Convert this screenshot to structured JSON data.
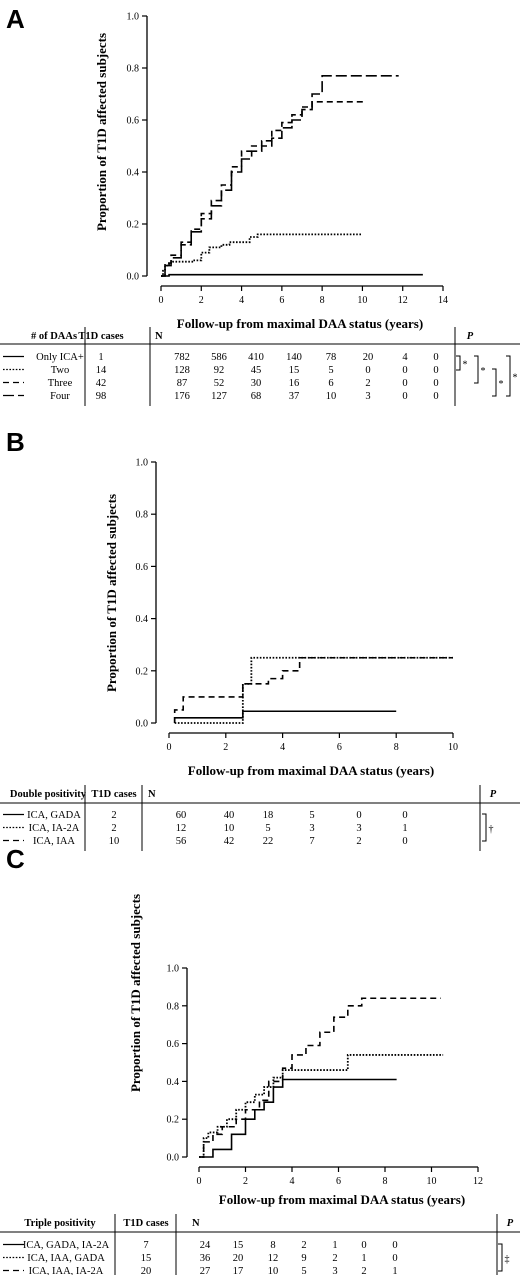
{
  "chart_data": [
    {
      "panel": "A",
      "type": "line",
      "xlabel": "Follow-up from maximal DAA status (years)",
      "ylabel": "Proportion of T1D affected subjects",
      "xlim": [
        0,
        14
      ],
      "ylim": [
        0,
        1.0
      ],
      "xticks": [
        "0",
        "2",
        "4",
        "6",
        "8",
        "10",
        "12",
        "14"
      ],
      "yticks": [
        "0.0",
        "0.2",
        "0.4",
        "0.6",
        "0.8",
        "1.0"
      ],
      "series": [
        {
          "name": "Only ICA+",
          "style": "solid",
          "x": [
            0,
            0.4,
            13
          ],
          "y": [
            0,
            0.005,
            0.005
          ]
        },
        {
          "name": "Two",
          "style": "dotted",
          "x": [
            0,
            0.1,
            0.2,
            0.4,
            0.6,
            1.6,
            2.0,
            2.4,
            3.0,
            3.4,
            4.4,
            4.8,
            10.0
          ],
          "y": [
            0,
            0.02,
            0.04,
            0.05,
            0.055,
            0.06,
            0.09,
            0.11,
            0.12,
            0.13,
            0.15,
            0.16,
            0.16
          ]
        },
        {
          "name": "Three",
          "style": "dashed",
          "x": [
            0,
            0.2,
            0.5,
            1,
            1.5,
            2,
            2.5,
            3,
            3.5,
            4,
            4.5,
            5,
            5.5,
            6,
            6.5,
            7,
            7.5,
            8,
            8.5,
            10.2
          ],
          "y": [
            0,
            0.05,
            0.08,
            0.13,
            0.18,
            0.24,
            0.29,
            0.35,
            0.42,
            0.48,
            0.5,
            0.52,
            0.56,
            0.59,
            0.62,
            0.65,
            0.67,
            0.67,
            0.67,
            0.67
          ]
        },
        {
          "name": "Four",
          "style": "long-dash",
          "x": [
            0,
            0.2,
            0.5,
            1,
            1.5,
            2,
            2.5,
            3,
            3.5,
            4,
            4.5,
            5,
            5.5,
            6,
            6.5,
            7,
            7.5,
            8,
            8.5,
            11.8
          ],
          "y": [
            0,
            0.04,
            0.07,
            0.12,
            0.17,
            0.22,
            0.27,
            0.33,
            0.4,
            0.45,
            0.48,
            0.5,
            0.53,
            0.57,
            0.6,
            0.64,
            0.7,
            0.77,
            0.77,
            0.77
          ]
        }
      ],
      "table": {
        "headers": [
          "# of DAAs",
          "T1D cases",
          "N",
          "P"
        ],
        "rows": [
          {
            "label": "Only ICA+",
            "cases": "1",
            "n": [
              "782",
              "586",
              "410",
              "140",
              "78",
              "20",
              "4",
              "0"
            ]
          },
          {
            "label": "Two",
            "cases": "14",
            "n": [
              "128",
              "92",
              "45",
              "15",
              "5",
              "0",
              "0",
              "0"
            ]
          },
          {
            "label": "Three",
            "cases": "42",
            "n": [
              "87",
              "52",
              "30",
              "16",
              "6",
              "2",
              "0",
              "0"
            ]
          },
          {
            "label": "Four",
            "cases": "98",
            "n": [
              "176",
              "127",
              "68",
              "37",
              "10",
              "3",
              "0",
              "0"
            ]
          }
        ],
        "symbols": [
          "*",
          "*",
          "*",
          "*"
        ]
      }
    },
    {
      "panel": "B",
      "type": "line",
      "xlabel": "Follow-up from maximal DAA status (years)",
      "ylabel": "Proportion of T1D affected subjects",
      "xlim": [
        0,
        10
      ],
      "ylim": [
        0,
        1.0
      ],
      "xticks": [
        "0",
        "2",
        "4",
        "6",
        "8",
        "10"
      ],
      "yticks": [
        "0.0",
        "0.2",
        "0.4",
        "0.6",
        "0.8",
        "1.0"
      ],
      "series": [
        {
          "name": "ICA, GADA",
          "style": "solid",
          "x": [
            0.2,
            0.2,
            2.6,
            2.6,
            8
          ],
          "y": [
            0,
            0.02,
            0.02,
            0.045,
            0.045
          ]
        },
        {
          "name": "ICA, IA-2A",
          "style": "dotted",
          "x": [
            0.2,
            2.6,
            2.6,
            2.9,
            2.9,
            10
          ],
          "y": [
            0,
            0,
            0.15,
            0.15,
            0.25,
            0.25
          ]
        },
        {
          "name": "ICA, IAA",
          "style": "dashed",
          "x": [
            0.2,
            0.2,
            0.5,
            0.5,
            2.6,
            2.6,
            3.5,
            3.5,
            4.0,
            4.0,
            4.6,
            4.6,
            10
          ],
          "y": [
            0,
            0.05,
            0.05,
            0.1,
            0.1,
            0.15,
            0.15,
            0.17,
            0.17,
            0.2,
            0.2,
            0.25,
            0.25
          ]
        }
      ],
      "table": {
        "headers": [
          "Double positivity",
          "T1D cases",
          "N",
          "P"
        ],
        "rows": [
          {
            "label": "ICA, GADA",
            "cases": "2",
            "n": [
              "60",
              "40",
              "18",
              "5",
              "0",
              "0"
            ]
          },
          {
            "label": "ICA, IA-2A",
            "cases": "2",
            "n": [
              "12",
              "10",
              "5",
              "3",
              "3",
              "1"
            ]
          },
          {
            "label": "ICA, IAA",
            "cases": "10",
            "n": [
              "56",
              "42",
              "22",
              "7",
              "2",
              "0"
            ]
          }
        ],
        "symbols": [
          "†"
        ]
      }
    },
    {
      "panel": "C",
      "type": "line",
      "xlabel": "Follow-up from maximal DAA status (years)",
      "ylabel": "Proportion of T1D affected subjects",
      "xlim": [
        0,
        12
      ],
      "ylim": [
        0,
        1.0
      ],
      "xticks": [
        "0",
        "2",
        "4",
        "6",
        "8",
        "10",
        "12"
      ],
      "yticks": [
        "0.0",
        "0.2",
        "0.4",
        "0.6",
        "0.8",
        "1.0"
      ],
      "series": [
        {
          "name": "ICA, GADA, IA-2A",
          "style": "solid",
          "x": [
            0,
            0.6,
            1.4,
            2.0,
            2.4,
            2.8,
            3.2,
            3.6,
            8.5
          ],
          "y": [
            0,
            0.04,
            0.12,
            0.2,
            0.25,
            0.29,
            0.37,
            0.41,
            0.41
          ]
        },
        {
          "name": "ICA, IAA, GADA",
          "style": "dotted",
          "x": [
            0,
            0.2,
            0.4,
            0.8,
            1.2,
            1.6,
            2.0,
            2.4,
            2.8,
            3.2,
            3.6,
            6.4,
            10.5
          ],
          "y": [
            0,
            0.1,
            0.13,
            0.16,
            0.2,
            0.25,
            0.29,
            0.33,
            0.37,
            0.42,
            0.46,
            0.54,
            0.54
          ]
        },
        {
          "name": "ICA, IAA, IA-2A",
          "style": "dashed",
          "x": [
            0,
            0.2,
            0.6,
            1.0,
            1.6,
            2.0,
            2.6,
            3.0,
            3.6,
            4.0,
            4.6,
            5.2,
            5.8,
            6.4,
            7.0,
            10.4
          ],
          "y": [
            0,
            0.08,
            0.12,
            0.16,
            0.2,
            0.25,
            0.3,
            0.4,
            0.47,
            0.54,
            0.59,
            0.66,
            0.74,
            0.8,
            0.84,
            0.84
          ]
        }
      ],
      "table": {
        "headers": [
          "Triple positivity",
          "T1D cases",
          "N",
          "P"
        ],
        "rows": [
          {
            "label": "ICA, GADA, IA-2A",
            "cases": "7",
            "n": [
              "24",
              "15",
              "8",
              "2",
              "1",
              "0",
              "0"
            ]
          },
          {
            "label": "ICA, IAA, GADA",
            "cases": "15",
            "n": [
              "36",
              "20",
              "12",
              "9",
              "2",
              "1",
              "0"
            ]
          },
          {
            "label": "ICA, IAA, IA-2A",
            "cases": "20",
            "n": [
              "27",
              "17",
              "10",
              "5",
              "3",
              "2",
              "1"
            ]
          }
        ],
        "symbols": [
          "‡"
        ]
      }
    }
  ]
}
